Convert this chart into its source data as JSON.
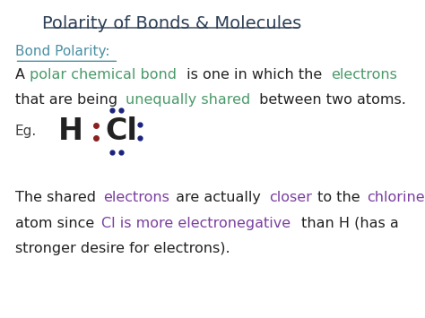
{
  "title": "Polarity of Bonds & Molecules",
  "title_color": "#2E4057",
  "title_fontsize": 14,
  "background_color": "#FFFFFF",
  "bond_polarity_label": "Bond Polarity:",
  "bond_polarity_color": "#4A90A4",
  "eg_color": "#444444",
  "H_color": "#222222",
  "Cl_color": "#222222",
  "dot_bond_color": "#8B2020",
  "dot_lone_color": "#1A237E",
  "green_color": "#4A9A6A",
  "purple_color": "#7B3FA0",
  "black_color": "#222222",
  "seg1_line1": [
    [
      "A ",
      "#222222"
    ],
    [
      "polar chemical bond",
      "#4A9A6A"
    ],
    [
      " is one in which the ",
      "#222222"
    ],
    [
      "electrons",
      "#4A9A6A"
    ]
  ],
  "seg1_line2": [
    [
      "that are being ",
      "#222222"
    ],
    [
      "unequally shared",
      "#4A9A6A"
    ],
    [
      " between two atoms.",
      "#222222"
    ]
  ],
  "seg2_line1": [
    [
      "The shared ",
      "#222222"
    ],
    [
      "electrons",
      "#7B3FA0"
    ],
    [
      " are actually ",
      "#222222"
    ],
    [
      "closer",
      "#7B3FA0"
    ],
    [
      " to the ",
      "#222222"
    ],
    [
      "chlorine",
      "#7B3FA0"
    ]
  ],
  "seg2_line2": [
    [
      "atom since ",
      "#222222"
    ],
    [
      "Cl is more electronegative",
      "#7B3FA0"
    ],
    [
      " than H (has a",
      "#222222"
    ]
  ],
  "seg2_line3": [
    [
      "stronger desire for electrons).",
      "#222222"
    ]
  ]
}
